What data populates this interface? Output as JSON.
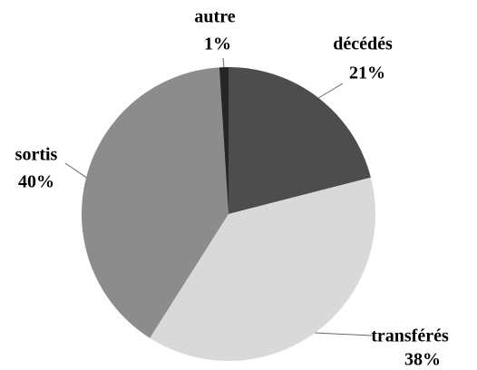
{
  "chart_data": {
    "type": "pie",
    "categories": [
      "décédés",
      "transférés",
      "sortis",
      "autre"
    ],
    "values": [
      21,
      38,
      40,
      1
    ],
    "value_labels": [
      "21%",
      "38%",
      "40%",
      "1%"
    ],
    "colors": [
      "#4d4d4d",
      "#d9d9d9",
      "#8c8c8c",
      "#262626"
    ]
  }
}
